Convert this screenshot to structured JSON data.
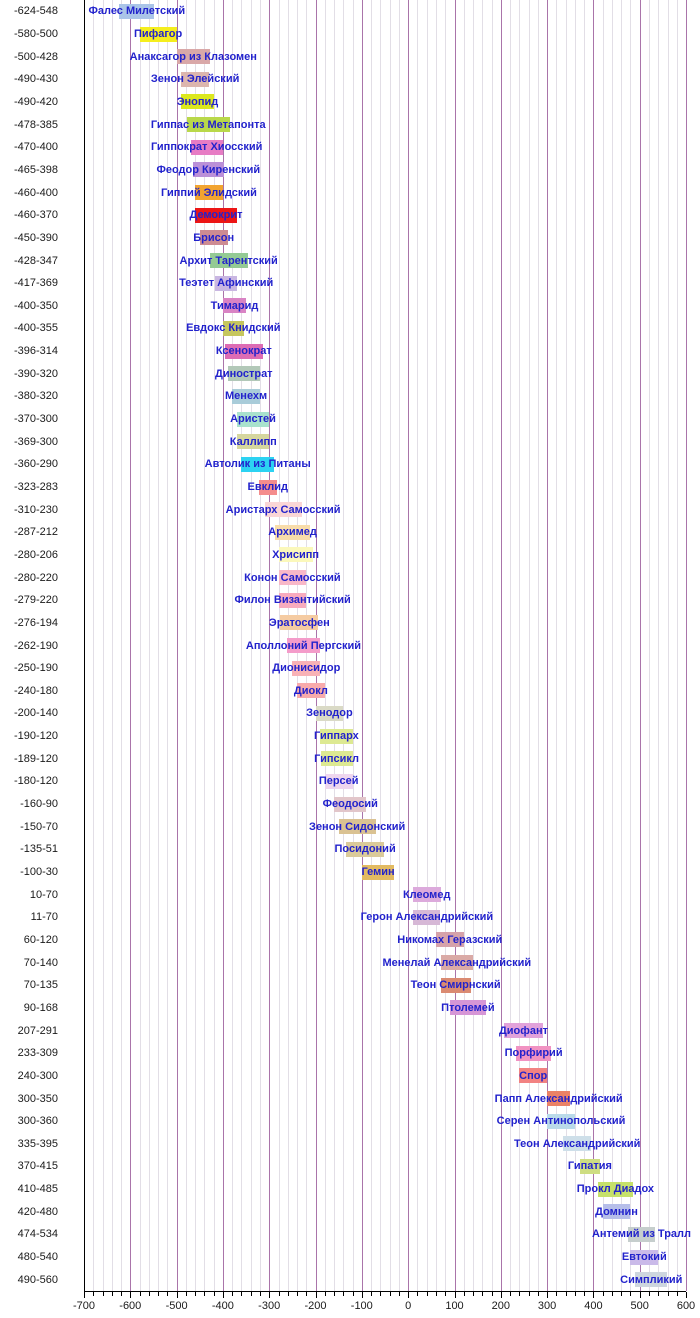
{
  "chart_data": {
    "type": "bar",
    "variant": "horizontal-timeline-gantt",
    "title": "",
    "xlabel": "",
    "ylabel": "",
    "x_axis": {
      "min": -700,
      "max": 600,
      "major_step": 100,
      "minor_step": 20,
      "tick_labels": [
        "-700",
        "-600",
        "-500",
        "-400",
        "-300",
        "-200",
        "-100",
        "0",
        "100",
        "200",
        "300",
        "400",
        "500",
        "600"
      ],
      "grid": true
    },
    "people": [
      {
        "years_label": "-624-548",
        "name": "Фалес Милетский",
        "birth": -624,
        "death": -548,
        "color": "#aac4e8"
      },
      {
        "years_label": "-580-500",
        "name": "Пифагор",
        "birth": -580,
        "death": -500,
        "color": "#f5ee1e"
      },
      {
        "years_label": "-500-428",
        "name": "Анаксагор из Клазомен",
        "birth": -500,
        "death": -428,
        "color": "#d9a8a8"
      },
      {
        "years_label": "-490-430",
        "name": "Зенон Элейский",
        "birth": -490,
        "death": -430,
        "color": "#dcb6ae"
      },
      {
        "years_label": "-490-420",
        "name": "Энопид",
        "birth": -490,
        "death": -420,
        "color": "#dce81e"
      },
      {
        "years_label": "-478-385",
        "name": "Гиппас из Метапонта",
        "birth": -478,
        "death": -385,
        "color": "#b9d84a"
      },
      {
        "years_label": "-470-400",
        "name": "Гиппократ Хиосский",
        "birth": -470,
        "death": -400,
        "color": "#e77cc4"
      },
      {
        "years_label": "-465-398",
        "name": "Феодор Киренский",
        "birth": -465,
        "death": -398,
        "color": "#bb90d8"
      },
      {
        "years_label": "-460-400",
        "name": "Гиппий Элидский",
        "birth": -460,
        "death": -400,
        "color": "#f2a430"
      },
      {
        "years_label": "-460-370",
        "name": "Демокрит",
        "birth": -460,
        "death": -370,
        "color": "#ec1515"
      },
      {
        "years_label": "-450-390",
        "name": "Брисон",
        "birth": -450,
        "death": -390,
        "color": "#cd8b92"
      },
      {
        "years_label": "-428-347",
        "name": "Архит Тарентский",
        "birth": -428,
        "death": -347,
        "color": "#94ca94"
      },
      {
        "years_label": "-417-369",
        "name": "Теэтет Афинский",
        "birth": -417,
        "death": -369,
        "color": "#c9b6e2"
      },
      {
        "years_label": "-400-350",
        "name": "Тимарид",
        "birth": -400,
        "death": -350,
        "color": "#d983c4"
      },
      {
        "years_label": "-400-355",
        "name": "Евдокс Книдский",
        "birth": -400,
        "death": -355,
        "color": "#c6c65e"
      },
      {
        "years_label": "-396-314",
        "name": "Ксенократ",
        "birth": -396,
        "death": -314,
        "color": "#dd6cb4"
      },
      {
        "years_label": "-390-320",
        "name": "Динострат",
        "birth": -390,
        "death": -320,
        "color": "#b2c8b8"
      },
      {
        "years_label": "-380-320",
        "name": "Менехм",
        "birth": -380,
        "death": -320,
        "color": "#a9ccd9"
      },
      {
        "years_label": "-370-300",
        "name": "Аристей",
        "birth": -370,
        "death": -300,
        "color": "#a9e2cd"
      },
      {
        "years_label": "-369-300",
        "name": "Каллипп",
        "birth": -369,
        "death": -300,
        "color": "#d6d69e"
      },
      {
        "years_label": "-360-290",
        "name": "Автолик из Питаны",
        "birth": -360,
        "death": -290,
        "color": "#2cd2f2"
      },
      {
        "years_label": "-323-283",
        "name": "Евклид",
        "birth": -323,
        "death": -283,
        "color": "#f48c8c"
      },
      {
        "years_label": "-310-230",
        "name": "Аристарх Самосский",
        "birth": -310,
        "death": -230,
        "color": "#fad6d6"
      },
      {
        "years_label": "-287-212",
        "name": "Архимед",
        "birth": -287,
        "death": -212,
        "color": "#f8dcaa"
      },
      {
        "years_label": "-280-206",
        "name": "Хрисипп",
        "birth": -280,
        "death": -206,
        "color": "#fbf8bb"
      },
      {
        "years_label": "-280-220",
        "name": "Конон Самосский",
        "birth": -280,
        "death": -220,
        "color": "#f8b8c8"
      },
      {
        "years_label": "-279-220",
        "name": "Филон Византийский",
        "birth": -279,
        "death": -220,
        "color": "#f8abbe"
      },
      {
        "years_label": "-276-194",
        "name": "Эратосфен",
        "birth": -276,
        "death": -194,
        "color": "#f5cba2"
      },
      {
        "years_label": "-262-190",
        "name": "Аполлоний Пергский",
        "birth": -262,
        "death": -190,
        "color": "#f49cca"
      },
      {
        "years_label": "-250-190",
        "name": "Дионисидор",
        "birth": -250,
        "death": -190,
        "color": "#f8b2b6"
      },
      {
        "years_label": "-240-180",
        "name": "Диокл",
        "birth": -240,
        "death": -180,
        "color": "#f8abab"
      },
      {
        "years_label": "-200-140",
        "name": "Зенодор",
        "birth": -200,
        "death": -140,
        "color": "#dadac6"
      },
      {
        "years_label": "-190-120",
        "name": "Гиппарх",
        "birth": -190,
        "death": -120,
        "color": "#dde992"
      },
      {
        "years_label": "-189-120",
        "name": "Гипсикл",
        "birth": -189,
        "death": -120,
        "color": "#dde992"
      },
      {
        "years_label": "-180-120",
        "name": "Персей",
        "birth": -180,
        "death": -120,
        "color": "#eed6ee"
      },
      {
        "years_label": "-160-90",
        "name": "Феодосий",
        "birth": -160,
        "death": -90,
        "color": "#e2c6ca"
      },
      {
        "years_label": "-150-70",
        "name": "Зенон Сидонский",
        "birth": -150,
        "death": -70,
        "color": "#dac292"
      },
      {
        "years_label": "-135-51",
        "name": "Посидоний",
        "birth": -135,
        "death": -51,
        "color": "#daca9a"
      },
      {
        "years_label": "-100-30",
        "name": "Гемин",
        "birth": -100,
        "death": -30,
        "color": "#e2ba62"
      },
      {
        "years_label": "10-70",
        "name": "Клеомед",
        "birth": 10,
        "death": 70,
        "color": "#dcaadc"
      },
      {
        "years_label": "11-70",
        "name": "Герон Александрийский",
        "birth": 11,
        "death": 70,
        "color": "#d6b8d6"
      },
      {
        "years_label": "60-120",
        "name": "Никомах Геразский",
        "birth": 60,
        "death": 120,
        "color": "#d6a2aa"
      },
      {
        "years_label": "70-140",
        "name": "Менелай Александрийский",
        "birth": 70,
        "death": 140,
        "color": "#daaaa6"
      },
      {
        "years_label": "70-135",
        "name": "Теон Смирнский",
        "birth": 70,
        "death": 135,
        "color": "#da8a72"
      },
      {
        "years_label": "90-168",
        "name": "Птолемей",
        "birth": 90,
        "death": 168,
        "color": "#d696d6"
      },
      {
        "years_label": "207-291",
        "name": "Диофант",
        "birth": 207,
        "death": 291,
        "color": "#e2a2da"
      },
      {
        "years_label": "233-309",
        "name": "Порфирий",
        "birth": 233,
        "death": 309,
        "color": "#f192c2"
      },
      {
        "years_label": "240-300",
        "name": "Спор",
        "birth": 240,
        "death": 300,
        "color": "#f28282"
      },
      {
        "years_label": "300-350",
        "name": "Папп Александрийский",
        "birth": 300,
        "death": 350,
        "color": "#ea8266"
      },
      {
        "years_label": "300-360",
        "name": "Серен Антинопольский",
        "birth": 300,
        "death": 360,
        "color": "#badae9"
      },
      {
        "years_label": "335-395",
        "name": "Теон Александрийский",
        "birth": 335,
        "death": 395,
        "color": "#cedfe9"
      },
      {
        "years_label": "370-415",
        "name": "Гипатия",
        "birth": 370,
        "death": 415,
        "color": "#cedd82"
      },
      {
        "years_label": "410-485",
        "name": "Прокл Диадох",
        "birth": 410,
        "death": 485,
        "color": "#c6e16a"
      },
      {
        "years_label": "420-480",
        "name": "Домнин",
        "birth": 420,
        "death": 480,
        "color": "#b6bee9"
      },
      {
        "years_label": "474-534",
        "name": "Антемий из Тралл",
        "birth": 474,
        "death": 534,
        "color": "#c6cecd"
      },
      {
        "years_label": "480-540",
        "name": "Евтокий",
        "birth": 480,
        "death": 540,
        "color": "#cabae9"
      },
      {
        "years_label": "490-560",
        "name": "Симпликий",
        "birth": 490,
        "death": 560,
        "color": "#ced6de"
      }
    ]
  },
  "colors": {
    "background": "#ffffff",
    "grid_major": "#aa74aa",
    "grid_minor": "#e2dee6",
    "axis": "#000000",
    "name_text": "#2222cc",
    "year_text": "#1a1a1a"
  }
}
